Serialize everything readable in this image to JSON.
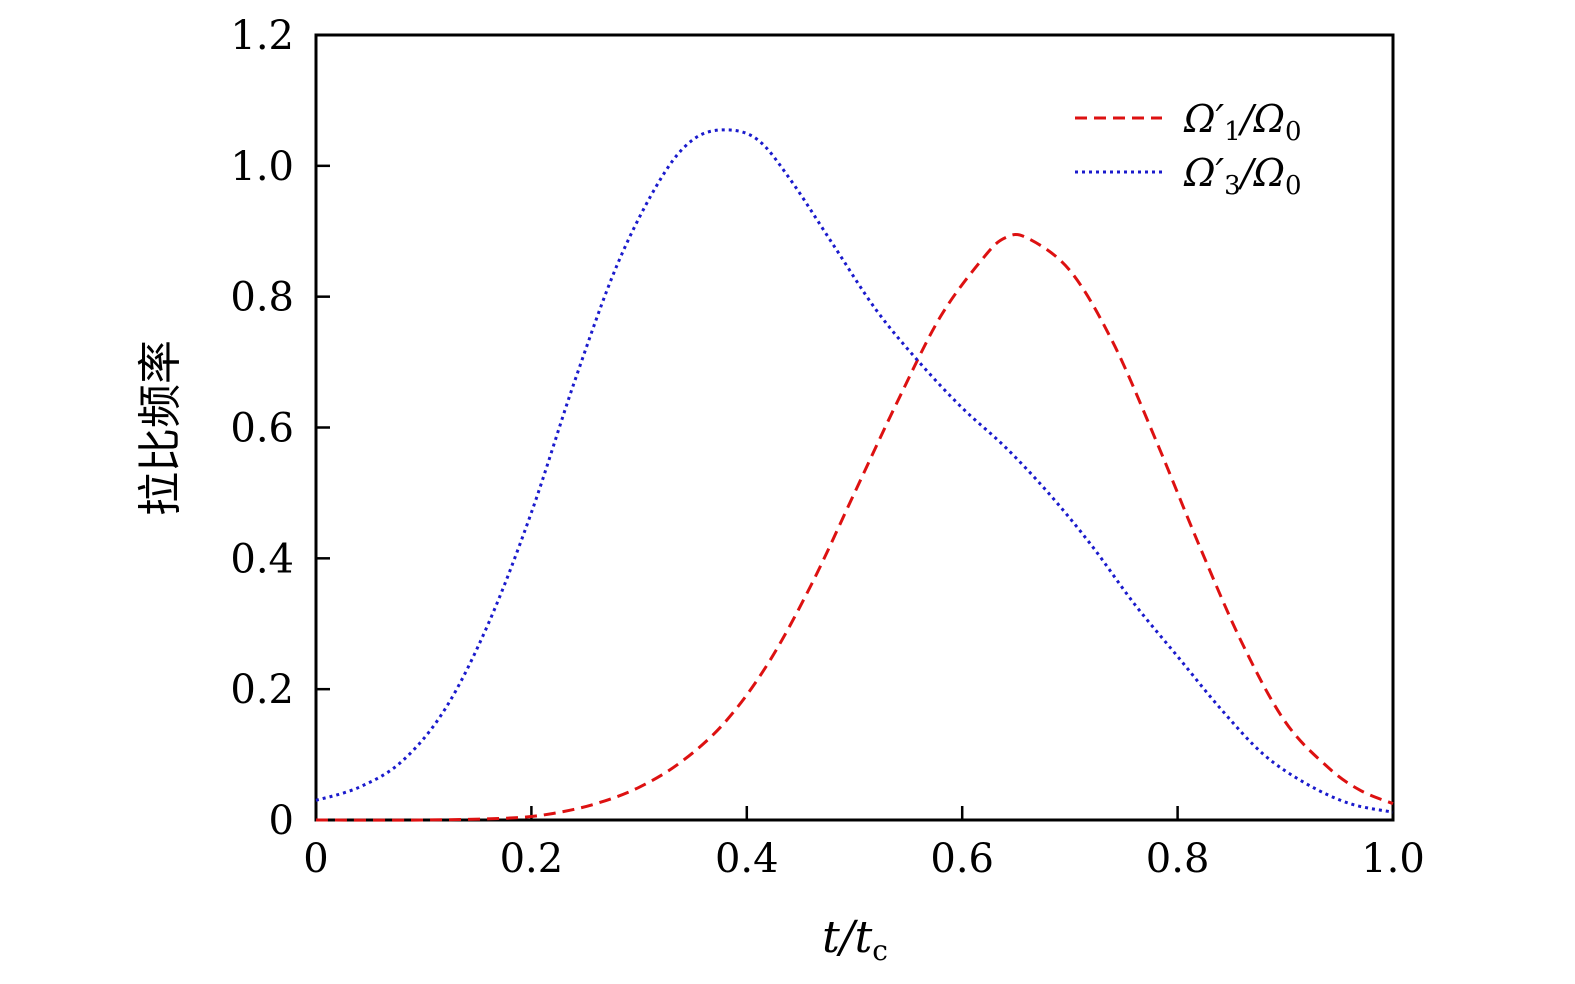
{
  "chart_data": {
    "type": "line",
    "xlabel": "t/tc",
    "xlabel_main": "t/t",
    "xlabel_sub": "c",
    "ylabel": "拉比频率",
    "xlim": [
      0,
      1.0
    ],
    "ylim": [
      0,
      1.2
    ],
    "x_ticks": [
      "0",
      "0.2",
      "0.4",
      "0.6",
      "0.8",
      "1.0"
    ],
    "y_ticks": [
      "0",
      "0.2",
      "0.4",
      "0.6",
      "0.8",
      "1.0",
      "1.2"
    ],
    "legend_position": "top-right",
    "series": [
      {
        "name": "Ω′1/Ω0",
        "legend_main": "Ω′",
        "legend_sub": "1",
        "legend_mid": "/Ω",
        "legend_sub2": "0",
        "color": "#dd1111",
        "style": "dashed",
        "x": [
          0,
          0.1,
          0.18,
          0.22,
          0.26,
          0.3,
          0.34,
          0.38,
          0.42,
          0.46,
          0.5,
          0.54,
          0.58,
          0.62,
          0.64,
          0.66,
          0.7,
          0.74,
          0.78,
          0.82,
          0.86,
          0.9,
          0.94,
          0.97,
          1.0
        ],
        "values": [
          0.0,
          0.0,
          0.003,
          0.01,
          0.025,
          0.05,
          0.09,
          0.15,
          0.24,
          0.36,
          0.5,
          0.64,
          0.77,
          0.86,
          0.89,
          0.89,
          0.84,
          0.73,
          0.58,
          0.42,
          0.27,
          0.15,
          0.08,
          0.045,
          0.025
        ]
      },
      {
        "name": "Ω′3/Ω0",
        "legend_main": "Ω′",
        "legend_sub": "3",
        "legend_mid": "/Ω",
        "legend_sub2": "0",
        "color": "#1a1acc",
        "style": "dotted",
        "x": [
          0,
          0.04,
          0.08,
          0.12,
          0.16,
          0.2,
          0.24,
          0.28,
          0.32,
          0.35,
          0.38,
          0.41,
          0.44,
          0.48,
          0.52,
          0.56,
          0.6,
          0.64,
          0.68,
          0.72,
          0.76,
          0.8,
          0.84,
          0.88,
          0.92,
          0.96,
          1.0
        ],
        "values": [
          0.03,
          0.05,
          0.09,
          0.17,
          0.3,
          0.47,
          0.67,
          0.85,
          0.98,
          1.04,
          1.055,
          1.04,
          0.98,
          0.88,
          0.78,
          0.7,
          0.63,
          0.57,
          0.5,
          0.42,
          0.33,
          0.25,
          0.17,
          0.1,
          0.055,
          0.025,
          0.012
        ]
      }
    ]
  }
}
